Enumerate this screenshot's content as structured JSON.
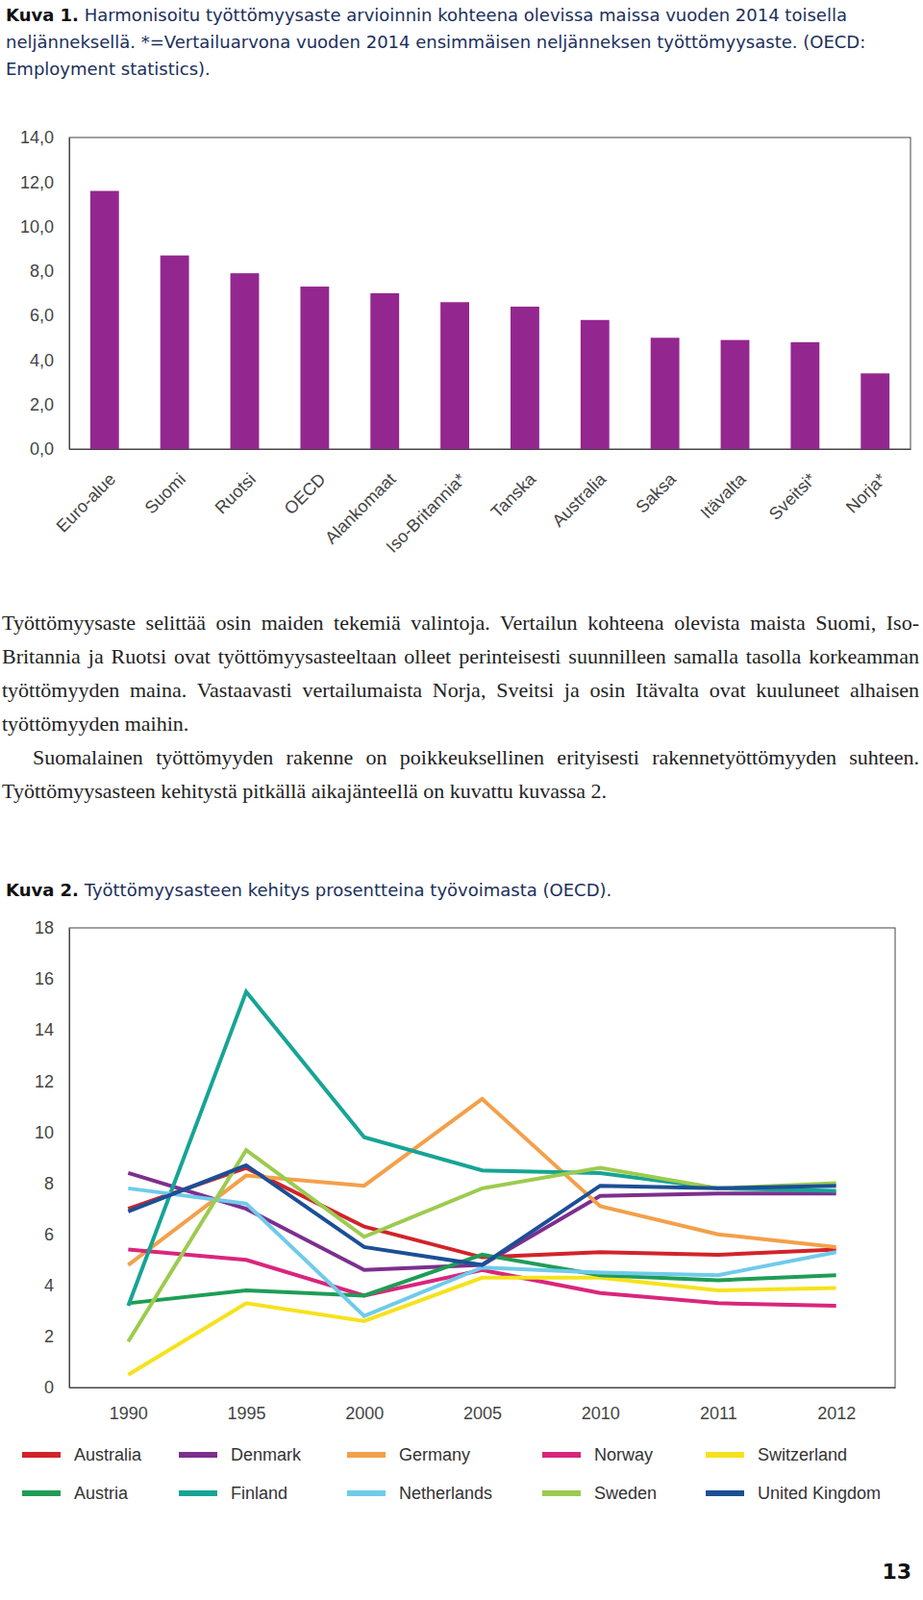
{
  "chart_data": [
    {
      "type": "bar",
      "title": "Kuva 1. Harmonisoitu työttömyysaste arvioinnin kohteena olevissa maissa vuoden 2014 toisella neljänneksellä. *=Vertailuarvona vuoden 2014 ensimmäisen neljänneksen työttömyysaste. (OECD: Employment statistics).",
      "categories": [
        "Euro-alue",
        "Suomi",
        "Ruotsi",
        "OECD",
        "Alankomaat",
        "Iso-Britannia*",
        "Tanska",
        "Australia",
        "Saksa",
        "Itävalta",
        "Sveitsi*",
        "Norja*"
      ],
      "values": [
        11.6,
        8.7,
        7.9,
        7.3,
        7.0,
        6.6,
        6.4,
        5.8,
        5.0,
        4.9,
        4.8,
        3.4
      ],
      "color": "#93278f",
      "ylim": [
        0,
        14
      ],
      "yticks": [
        {
          "value": 0,
          "label": "0,0"
        },
        {
          "value": 2,
          "label": "2,0"
        },
        {
          "value": 4,
          "label": "4,0"
        },
        {
          "value": 6,
          "label": "6,0"
        },
        {
          "value": 8,
          "label": "8,0"
        },
        {
          "value": 10,
          "label": "10,0"
        },
        {
          "value": 12,
          "label": "12,0"
        },
        {
          "value": 14,
          "label": "14,0"
        }
      ],
      "grid": false
    },
    {
      "type": "line",
      "title": "Kuva 2. Työttömyysasteen kehitys prosentteina työvoimasta (OECD).",
      "categories": [
        "1990",
        "1995",
        "2000",
        "2005",
        "2010",
        "2011",
        "2012"
      ],
      "series": [
        {
          "name": "Australia",
          "color": "#d2232a",
          "values": [
            7.0,
            8.6,
            6.3,
            5.1,
            5.3,
            5.2,
            5.4
          ]
        },
        {
          "name": "Denmark",
          "color": "#7d2f8e",
          "values": [
            8.4,
            7.0,
            4.6,
            4.8,
            7.5,
            7.6,
            7.6
          ]
        },
        {
          "name": "Germany",
          "color": "#f3a04a",
          "values": [
            4.8,
            8.3,
            7.9,
            11.3,
            7.1,
            6.0,
            5.5
          ]
        },
        {
          "name": "Norway",
          "color": "#d9267d",
          "values": [
            5.4,
            5.0,
            3.6,
            4.6,
            3.7,
            3.3,
            3.2
          ]
        },
        {
          "name": "Switzerland",
          "color": "#f6e21c",
          "values": [
            0.5,
            3.3,
            2.6,
            4.3,
            4.3,
            3.8,
            3.9
          ]
        },
        {
          "name": "Austria",
          "color": "#1f9d55",
          "values": [
            3.3,
            3.8,
            3.6,
            5.2,
            4.4,
            4.2,
            4.4
          ]
        },
        {
          "name": "Finland",
          "color": "#17a495",
          "values": [
            3.2,
            15.5,
            9.8,
            8.5,
            8.4,
            7.8,
            7.7
          ]
        },
        {
          "name": "Netherlands",
          "color": "#6fcbea",
          "values": [
            7.8,
            7.2,
            2.8,
            4.7,
            4.5,
            4.4,
            5.3
          ]
        },
        {
          "name": "Sweden",
          "color": "#9ccb4f",
          "values": [
            1.8,
            9.3,
            5.9,
            7.8,
            8.6,
            7.8,
            8.0
          ]
        },
        {
          "name": "United Kingdom",
          "color": "#1c4f96",
          "values": [
            6.9,
            8.7,
            5.5,
            4.8,
            7.9,
            7.8,
            7.9
          ]
        }
      ],
      "ylim": [
        0,
        18
      ],
      "yticks": [
        0,
        2,
        4,
        6,
        8,
        10,
        12,
        14,
        16,
        18
      ],
      "grid": false,
      "legend": "bottom"
    }
  ],
  "document": {
    "paragraphs": [
      "Työttömyysaste selittää osin maiden tekemiä valintoja. Vertailun kohteena olevista maista Suomi, Iso-Britannia ja Ruotsi ovat työttömyysasteeltaan olleet perinteisesti suunnilleen samalla tasolla korkeamman työttömyyden maina. Vastaavasti vertailumaista Norja, Sveitsi ja osin Itävalta ovat kuuluneet alhaisen työttömyyden maihin.",
      "Suomalainen työttömyyden rakenne on poikkeuksellinen erityisesti rakennetyöttömyyden suhteen. Työttömyysasteen kehitystä pitkällä aikajänteellä on kuvattu kuvassa 2."
    ],
    "page_number": "13"
  }
}
